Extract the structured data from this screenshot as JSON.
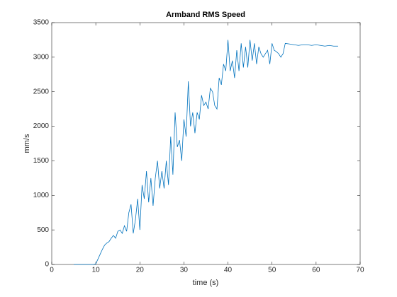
{
  "chart_data": {
    "type": "line",
    "title": "Armband RMS Speed",
    "xlabel": "time (s)",
    "ylabel": "mm/s",
    "color": "#0072bd",
    "x": [
      5,
      9.5,
      10,
      10.5,
      11,
      11.5,
      12,
      12.5,
      13,
      13.5,
      14,
      14.5,
      15,
      15.5,
      16,
      16.5,
      17,
      17.5,
      18,
      18.5,
      19,
      19.5,
      20,
      20.5,
      21,
      21.5,
      22,
      22.5,
      23,
      23.5,
      24,
      24.5,
      25,
      25.5,
      26,
      26.5,
      27,
      27.5,
      28,
      28.5,
      29,
      29.5,
      30,
      30.5,
      31,
      31.5,
      32,
      32.5,
      33,
      33.5,
      34,
      34.5,
      35,
      35.5,
      36,
      36.5,
      37,
      37.5,
      38,
      38.5,
      39,
      39.5,
      40,
      40.5,
      41,
      41.5,
      42,
      42.5,
      43,
      43.5,
      44,
      44.5,
      45,
      45.5,
      46,
      46.5,
      47,
      47.5,
      48,
      48.5,
      49,
      49.5,
      50,
      50.5,
      51,
      51.5,
      52,
      52.5,
      53,
      54,
      55,
      56,
      57,
      58,
      59,
      60,
      61,
      62,
      63,
      64,
      65
    ],
    "values": [
      0,
      0,
      10,
      80,
      150,
      220,
      280,
      310,
      330,
      380,
      420,
      380,
      480,
      500,
      450,
      560,
      480,
      750,
      870,
      450,
      650,
      950,
      500,
      1150,
      950,
      1350,
      900,
      1250,
      850,
      1250,
      1500,
      1100,
      1350,
      1100,
      1500,
      1150,
      1850,
      1300,
      2200,
      1700,
      1800,
      1500,
      2100,
      1850,
      2650,
      2000,
      2200,
      1900,
      2200,
      2100,
      2450,
      2300,
      2350,
      2250,
      2550,
      2500,
      2300,
      2250,
      2700,
      2600,
      2900,
      2800,
      3250,
      2800,
      2950,
      2700,
      3100,
      2800,
      3200,
      2850,
      3150,
      2850,
      3250,
      2950,
      3200,
      2900,
      3150,
      3050,
      3000,
      3050,
      3100,
      2900,
      3200,
      3100,
      3080,
      3050,
      3000,
      3050,
      3200,
      3190,
      3180,
      3170,
      3180,
      3180,
      3170,
      3180,
      3170,
      3160,
      3170,
      3160,
      3160
    ],
    "xlim": [
      0,
      70
    ],
    "xticks": [
      0,
      10,
      20,
      30,
      40,
      50,
      60,
      70
    ],
    "ylim": [
      0,
      3500
    ],
    "yticks": [
      0,
      500,
      1000,
      1500,
      2000,
      2500,
      3000,
      3500
    ]
  }
}
